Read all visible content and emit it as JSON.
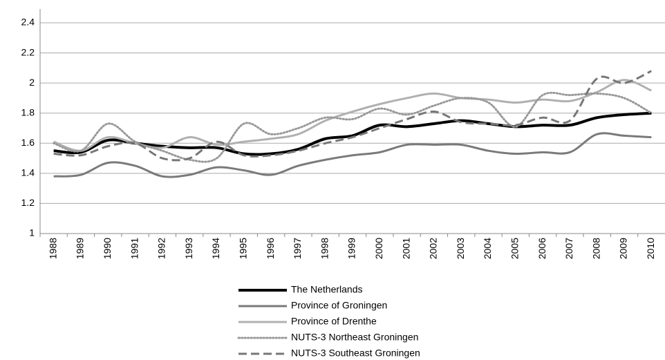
{
  "chart_data": {
    "type": "line",
    "categories": [
      "1988",
      "1989",
      "1990",
      "1991",
      "1992",
      "1993",
      "1994",
      "1995",
      "1996",
      "1997",
      "1998",
      "1999",
      "2000",
      "2001",
      "2002",
      "2003",
      "2004",
      "2005",
      "2006",
      "2007",
      "2008",
      "2009",
      "2010"
    ],
    "series": [
      {
        "name": "The Netherlands",
        "color": "#000000",
        "dash": "solid",
        "width": 4,
        "values": [
          1.55,
          1.54,
          1.62,
          1.6,
          1.58,
          1.57,
          1.57,
          1.53,
          1.53,
          1.56,
          1.63,
          1.65,
          1.72,
          1.71,
          1.73,
          1.75,
          1.73,
          1.71,
          1.72,
          1.72,
          1.77,
          1.79,
          1.8
        ]
      },
      {
        "name": "Province of Groningen",
        "color": "#7a7a7a",
        "dash": "solid",
        "width": 3,
        "values": [
          1.38,
          1.39,
          1.47,
          1.45,
          1.38,
          1.39,
          1.44,
          1.42,
          1.39,
          1.45,
          1.49,
          1.52,
          1.54,
          1.59,
          1.59,
          1.59,
          1.55,
          1.53,
          1.54,
          1.54,
          1.66,
          1.65,
          1.64
        ]
      },
      {
        "name": "Province of Drenthe",
        "color": "#b0b0b0",
        "dash": "solid",
        "width": 3,
        "values": [
          1.61,
          1.55,
          1.64,
          1.6,
          1.57,
          1.64,
          1.59,
          1.61,
          1.63,
          1.66,
          1.75,
          1.81,
          1.86,
          1.9,
          1.93,
          1.9,
          1.89,
          1.87,
          1.89,
          1.88,
          1.94,
          2.02,
          1.95
        ]
      },
      {
        "name": "NUTS-3 Northeast Groningen",
        "color": "#999999",
        "dash": "dotted",
        "width": 3,
        "values": [
          1.6,
          1.55,
          1.73,
          1.61,
          1.55,
          1.49,
          1.5,
          1.73,
          1.66,
          1.7,
          1.77,
          1.76,
          1.83,
          1.79,
          1.85,
          1.9,
          1.87,
          1.71,
          1.92,
          1.92,
          1.93,
          1.9,
          1.8
        ]
      },
      {
        "name": "NUTS-3 Southeast Groningen",
        "color": "#777777",
        "dash": "dashed",
        "width": 3,
        "values": [
          1.53,
          1.52,
          1.58,
          1.6,
          1.5,
          1.5,
          1.61,
          1.52,
          1.52,
          1.55,
          1.6,
          1.64,
          1.7,
          1.76,
          1.81,
          1.74,
          1.73,
          1.72,
          1.77,
          1.75,
          2.03,
          2.0,
          2.08
        ]
      }
    ],
    "ylim": [
      1,
      2.4
    ],
    "yticks": [
      1,
      1.2,
      1.4,
      1.6,
      1.8,
      2,
      2.2,
      2.4
    ],
    "grid": true,
    "legend": "bottom"
  }
}
